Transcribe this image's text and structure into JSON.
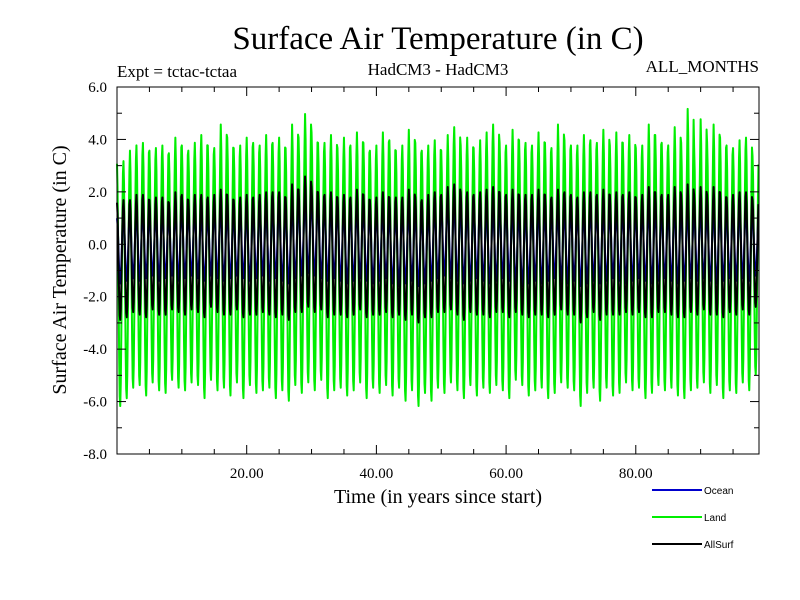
{
  "chart_data": {
    "type": "line",
    "title": "Surface Air Temperature (in C)",
    "subtitle_left": "Expt = tctac-tctaa",
    "subtitle_center": "HadCM3 - HadCM3",
    "subtitle_right": "ALL_MONTHS",
    "xlabel": "Time (in years since start)",
    "ylabel": "Surface Air Temperature (in C)",
    "xlim": [
      0.0,
      99.0
    ],
    "ylim": [
      -8.0,
      6.0
    ],
    "grid": false,
    "legend_position": "bottom-right",
    "x_ticks": [
      {
        "value": 20,
        "label": "20.00"
      },
      {
        "value": 40,
        "label": "40.00"
      },
      {
        "value": 60,
        "label": "60.00"
      },
      {
        "value": 80,
        "label": "80.00"
      }
    ],
    "y_ticks": [
      {
        "value": 6,
        "label": "6.0"
      },
      {
        "value": 4,
        "label": "4.0"
      },
      {
        "value": 2,
        "label": "2.0"
      },
      {
        "value": 0,
        "label": "0.0"
      },
      {
        "value": -2,
        "label": "-2.0"
      },
      {
        "value": -4,
        "label": "-4.0"
      },
      {
        "value": -6,
        "label": "-6.0"
      },
      {
        "value": -8,
        "label": "-8.0"
      }
    ],
    "sampling": "monthly seasonal cycle, 12 samples per year",
    "series": [
      {
        "name": "Land",
        "color": "#00ee00",
        "annual_max": [
          3.1,
          3.2,
          3.6,
          3.8,
          3.9,
          3.6,
          3.7,
          3.8,
          3.5,
          4.1,
          3.8,
          3.6,
          3.9,
          4.2,
          3.8,
          3.7,
          4.6,
          4.1,
          3.7,
          3.8,
          4.1,
          3.9,
          3.8,
          4.2,
          3.9,
          4.1,
          3.7,
          4.6,
          4.1,
          5.0,
          4.3,
          3.9,
          3.9,
          4.2,
          3.7,
          4.1,
          3.8,
          4.3,
          3.9,
          3.6,
          3.8,
          4.3,
          4.0,
          3.6,
          3.8,
          4.4,
          3.9,
          3.6,
          3.8,
          4.0,
          3.6,
          4.2,
          4.5,
          3.8,
          4.1,
          3.7,
          4.0,
          4.3,
          4.6,
          3.9,
          3.8,
          4.4,
          4.0,
          3.9,
          3.8,
          4.3,
          3.9,
          3.7,
          4.6,
          4.0,
          3.8,
          3.8,
          4.2,
          4.0,
          3.9,
          4.4,
          3.8,
          4.3,
          3.9,
          4.2,
          3.7,
          3.8,
          4.6,
          4.2,
          3.9,
          3.8,
          4.5,
          3.9,
          5.2,
          3.7,
          4.8,
          3.9,
          4.6,
          4.1,
          3.8,
          3.7,
          4.0,
          4.1,
          3.4
        ],
        "annual_min": [
          -6.2,
          -5.9,
          -5.5,
          -5.4,
          -5.8,
          -5.3,
          -5.6,
          -5.7,
          -5.2,
          -5.5,
          -5.6,
          -5.3,
          -5.4,
          -5.9,
          -5.2,
          -5.6,
          -5.5,
          -5.8,
          -5.3,
          -5.9,
          -5.4,
          -5.7,
          -5.6,
          -5.5,
          -5.9,
          -5.6,
          -6.0,
          -5.4,
          -5.7,
          -5.3,
          -5.6,
          -5.2,
          -5.9,
          -5.6,
          -5.5,
          -5.8,
          -5.6,
          -5.3,
          -5.9,
          -5.5,
          -5.7,
          -5.4,
          -5.8,
          -5.5,
          -6.0,
          -5.6,
          -6.2,
          -5.7,
          -6.0,
          -5.5,
          -5.7,
          -5.3,
          -5.6,
          -5.9,
          -5.4,
          -5.8,
          -5.5,
          -5.7,
          -5.4,
          -5.6,
          -5.9,
          -5.2,
          -5.4,
          -5.8,
          -5.6,
          -5.5,
          -5.9,
          -5.7,
          -5.3,
          -5.5,
          -5.6,
          -6.2,
          -5.7,
          -5.5,
          -6.0,
          -5.5,
          -5.8,
          -5.7,
          -5.3,
          -5.6,
          -5.5,
          -5.9,
          -5.7,
          -5.4,
          -5.6,
          -5.5,
          -5.8,
          -5.9,
          -5.6,
          -5.5,
          -5.3,
          -5.7,
          -5.4,
          -5.9,
          -5.6,
          -5.7,
          -5.3,
          -5.6,
          -5.0
        ]
      },
      {
        "name": "Ocean",
        "color": "#0000cc",
        "annual_max": [
          1.0,
          1.1,
          1.0,
          1.2,
          1.1,
          1.0,
          1.2,
          1.1,
          1.0,
          1.3,
          1.2,
          1.1,
          1.2,
          1.0,
          1.1,
          1.3,
          1.2,
          1.1,
          1.0,
          1.2,
          1.1,
          1.2,
          1.3,
          1.2,
          1.4,
          1.3,
          1.2,
          1.5,
          1.4,
          1.7,
          1.5,
          1.4,
          1.3,
          1.3,
          1.2,
          1.1,
          1.2,
          1.3,
          1.2,
          1.1,
          1.2,
          1.1,
          1.0,
          1.2,
          1.1,
          1.2,
          1.1,
          1.0,
          1.2,
          1.3,
          1.4,
          1.5,
          1.4,
          1.3,
          1.2,
          1.4,
          1.3,
          1.2,
          1.3,
          1.4,
          1.3,
          1.2,
          1.1,
          1.2,
          1.3,
          1.2,
          1.1,
          1.2,
          1.1,
          1.3,
          1.2,
          1.1,
          1.2,
          1.3,
          1.2,
          1.1,
          1.2,
          1.1,
          1.3,
          1.2,
          1.1,
          1.2,
          1.3,
          1.2,
          1.1,
          1.2,
          1.3,
          1.2,
          1.1,
          1.3,
          1.2,
          1.1,
          1.3,
          1.2,
          1.1,
          1.2,
          1.3,
          1.2,
          1.1
        ],
        "annual_min": [
          -1.5,
          -1.4,
          -1.3,
          -1.4,
          -1.3,
          -1.2,
          -1.4,
          -1.3,
          -1.2,
          -1.4,
          -1.3,
          -1.2,
          -1.3,
          -1.4,
          -1.2,
          -1.3,
          -1.4,
          -1.3,
          -1.2,
          -1.3,
          -1.4,
          -1.3,
          -1.2,
          -1.4,
          -1.3,
          -1.4,
          -1.5,
          -1.3,
          -1.2,
          -1.1,
          -1.2,
          -1.3,
          -1.4,
          -1.3,
          -1.4,
          -1.5,
          -1.4,
          -1.3,
          -1.4,
          -1.5,
          -1.4,
          -1.3,
          -1.5,
          -1.6,
          -1.5,
          -1.4,
          -1.6,
          -1.5,
          -1.4,
          -1.3,
          -1.2,
          -1.3,
          -1.4,
          -1.5,
          -1.4,
          -1.3,
          -1.4,
          -1.5,
          -1.4,
          -1.3,
          -1.4,
          -1.5,
          -1.6,
          -1.5,
          -1.4,
          -1.5,
          -1.4,
          -1.3,
          -1.4,
          -1.5,
          -1.4,
          -1.6,
          -1.5,
          -1.4,
          -1.5,
          -1.4,
          -1.3,
          -1.4,
          -1.5,
          -1.4,
          -1.3,
          -1.4,
          -1.5,
          -1.4,
          -1.3,
          -1.4,
          -1.5,
          -1.4,
          -1.3,
          -1.4,
          -1.3,
          -1.4,
          -1.5,
          -1.4,
          -1.3,
          -1.4,
          -1.3,
          -1.4,
          -1.2
        ]
      },
      {
        "name": "AllSurf",
        "color": "#000000",
        "annual_max": [
          1.6,
          1.7,
          1.7,
          1.9,
          1.9,
          1.7,
          1.8,
          1.8,
          1.6,
          2.0,
          1.9,
          1.7,
          1.9,
          1.9,
          1.8,
          1.9,
          2.1,
          1.9,
          1.7,
          1.8,
          1.9,
          1.8,
          1.9,
          2.0,
          2.0,
          2.0,
          1.8,
          2.3,
          2.1,
          2.6,
          2.2,
          2.0,
          1.9,
          2.0,
          1.8,
          1.9,
          1.8,
          2.1,
          1.9,
          1.7,
          1.8,
          2.0,
          1.8,
          1.8,
          1.8,
          2.1,
          1.8,
          1.7,
          1.9,
          2.0,
          1.9,
          2.2,
          2.3,
          2.0,
          2.0,
          1.9,
          2.0,
          2.1,
          2.2,
          2.0,
          1.9,
          2.1,
          1.9,
          1.9,
          1.9,
          2.1,
          1.9,
          1.8,
          2.1,
          2.0,
          1.9,
          1.8,
          2.0,
          2.0,
          1.9,
          2.1,
          1.9,
          2.0,
          1.9,
          2.0,
          1.8,
          1.9,
          2.2,
          2.0,
          1.9,
          1.9,
          2.2,
          1.9,
          2.3,
          1.9,
          2.2,
          1.9,
          2.2,
          2.0,
          1.8,
          1.9,
          2.0,
          2.0,
          1.7
        ],
        "annual_min": [
          -2.9,
          -2.8,
          -2.6,
          -2.7,
          -2.8,
          -2.5,
          -2.7,
          -2.7,
          -2.5,
          -2.6,
          -2.7,
          -2.5,
          -2.6,
          -2.8,
          -2.4,
          -2.6,
          -2.7,
          -2.7,
          -2.5,
          -2.8,
          -2.7,
          -2.7,
          -2.6,
          -2.7,
          -2.8,
          -2.7,
          -2.9,
          -2.6,
          -2.6,
          -2.4,
          -2.6,
          -2.5,
          -2.8,
          -2.7,
          -2.7,
          -2.8,
          -2.7,
          -2.5,
          -2.8,
          -2.7,
          -2.7,
          -2.6,
          -2.8,
          -2.7,
          -2.9,
          -2.7,
          -3.0,
          -2.8,
          -2.8,
          -2.6,
          -2.6,
          -2.5,
          -2.7,
          -2.9,
          -2.6,
          -2.7,
          -2.7,
          -2.8,
          -2.6,
          -2.6,
          -2.8,
          -2.6,
          -2.7,
          -2.8,
          -2.7,
          -2.7,
          -2.8,
          -2.7,
          -2.5,
          -2.7,
          -2.7,
          -3.0,
          -2.8,
          -2.6,
          -2.9,
          -2.7,
          -2.7,
          -2.7,
          -2.6,
          -2.7,
          -2.6,
          -2.8,
          -2.8,
          -2.6,
          -2.6,
          -2.7,
          -2.8,
          -2.8,
          -2.6,
          -2.7,
          -2.5,
          -2.7,
          -2.7,
          -2.8,
          -2.6,
          -2.7,
          -2.5,
          -2.7,
          -2.4
        ]
      }
    ],
    "legend": [
      {
        "name": "Ocean",
        "color": "#0000cc"
      },
      {
        "name": "Land",
        "color": "#00ee00"
      },
      {
        "name": "AllSurf",
        "color": "#000000"
      }
    ]
  }
}
